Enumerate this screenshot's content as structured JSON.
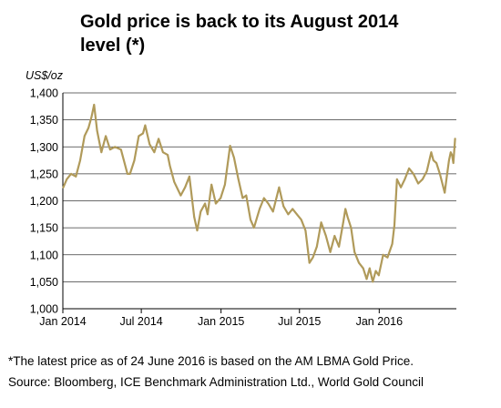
{
  "chart_data": {
    "type": "line",
    "title_lines": [
      "Gold price is back to its August 2014",
      "level (*)"
    ],
    "ylabel": "US$/oz",
    "ylim": [
      1000,
      1400
    ],
    "yticks": [
      1000,
      1050,
      1100,
      1150,
      1200,
      1250,
      1300,
      1350,
      1400
    ],
    "ytick_labels": [
      "1,000",
      "1,050",
      "1,100",
      "1,150",
      "1,200",
      "1,250",
      "1,300",
      "1,350",
      "1,400"
    ],
    "xlim": [
      "2014-01-01",
      "2016-06-27"
    ],
    "xticks": [
      "2014-01-01",
      "2014-07-01",
      "2015-01-01",
      "2015-07-01",
      "2016-01-01"
    ],
    "xtick_labels": [
      "Jan 2014",
      "Jul 2014",
      "Jan 2015",
      "Jul 2015",
      "Jan 2016"
    ],
    "grid": "horizontal",
    "line_color": "#b09a5a",
    "series": [
      {
        "name": "",
        "points": [
          [
            "2014-01-02",
            1225
          ],
          [
            "2014-01-10",
            1240
          ],
          [
            "2014-01-20",
            1250
          ],
          [
            "2014-01-31",
            1245
          ],
          [
            "2014-02-10",
            1275
          ],
          [
            "2014-02-20",
            1320
          ],
          [
            "2014-03-01",
            1335
          ],
          [
            "2014-03-08",
            1355
          ],
          [
            "2014-03-14",
            1378
          ],
          [
            "2014-03-21",
            1330
          ],
          [
            "2014-03-31",
            1290
          ],
          [
            "2014-04-10",
            1320
          ],
          [
            "2014-04-20",
            1295
          ],
          [
            "2014-05-01",
            1300
          ],
          [
            "2014-05-15",
            1295
          ],
          [
            "2014-05-30",
            1250
          ],
          [
            "2014-06-05",
            1250
          ],
          [
            "2014-06-15",
            1275
          ],
          [
            "2014-06-25",
            1320
          ],
          [
            "2014-07-05",
            1325
          ],
          [
            "2014-07-10",
            1340
          ],
          [
            "2014-07-20",
            1305
          ],
          [
            "2014-07-31",
            1290
          ],
          [
            "2014-08-10",
            1315
          ],
          [
            "2014-08-20",
            1290
          ],
          [
            "2014-08-31",
            1285
          ],
          [
            "2014-09-05",
            1265
          ],
          [
            "2014-09-15",
            1235
          ],
          [
            "2014-09-30",
            1210
          ],
          [
            "2014-10-10",
            1225
          ],
          [
            "2014-10-20",
            1245
          ],
          [
            "2014-10-31",
            1170
          ],
          [
            "2014-11-07",
            1145
          ],
          [
            "2014-11-15",
            1180
          ],
          [
            "2014-11-25",
            1195
          ],
          [
            "2014-12-01",
            1175
          ],
          [
            "2014-12-10",
            1230
          ],
          [
            "2014-12-20",
            1195
          ],
          [
            "2014-12-31",
            1205
          ],
          [
            "2015-01-10",
            1230
          ],
          [
            "2015-01-22",
            1302
          ],
          [
            "2015-01-31",
            1280
          ],
          [
            "2015-02-10",
            1240
          ],
          [
            "2015-02-20",
            1205
          ],
          [
            "2015-02-28",
            1210
          ],
          [
            "2015-03-10",
            1165
          ],
          [
            "2015-03-18",
            1150
          ],
          [
            "2015-03-31",
            1185
          ],
          [
            "2015-04-10",
            1205
          ],
          [
            "2015-04-20",
            1195
          ],
          [
            "2015-05-01",
            1180
          ],
          [
            "2015-05-15",
            1225
          ],
          [
            "2015-05-25",
            1190
          ],
          [
            "2015-06-05",
            1175
          ],
          [
            "2015-06-15",
            1185
          ],
          [
            "2015-06-25",
            1175
          ],
          [
            "2015-07-05",
            1165
          ],
          [
            "2015-07-15",
            1145
          ],
          [
            "2015-07-24",
            1085
          ],
          [
            "2015-08-01",
            1095
          ],
          [
            "2015-08-10",
            1115
          ],
          [
            "2015-08-20",
            1160
          ],
          [
            "2015-08-31",
            1135
          ],
          [
            "2015-09-10",
            1105
          ],
          [
            "2015-09-20",
            1135
          ],
          [
            "2015-09-30",
            1115
          ],
          [
            "2015-10-10",
            1160
          ],
          [
            "2015-10-15",
            1185
          ],
          [
            "2015-10-20",
            1170
          ],
          [
            "2015-10-28",
            1150
          ],
          [
            "2015-11-05",
            1105
          ],
          [
            "2015-11-15",
            1085
          ],
          [
            "2015-11-25",
            1075
          ],
          [
            "2015-12-03",
            1055
          ],
          [
            "2015-12-10",
            1075
          ],
          [
            "2015-12-17",
            1050
          ],
          [
            "2015-12-24",
            1070
          ],
          [
            "2015-12-31",
            1062
          ],
          [
            "2016-01-10",
            1100
          ],
          [
            "2016-01-20",
            1095
          ],
          [
            "2016-01-31",
            1120
          ],
          [
            "2016-02-05",
            1155
          ],
          [
            "2016-02-11",
            1240
          ],
          [
            "2016-02-20",
            1225
          ],
          [
            "2016-02-29",
            1240
          ],
          [
            "2016-03-10",
            1260
          ],
          [
            "2016-03-20",
            1250
          ],
          [
            "2016-03-31",
            1232
          ],
          [
            "2016-04-10",
            1240
          ],
          [
            "2016-04-20",
            1255
          ],
          [
            "2016-04-30",
            1290
          ],
          [
            "2016-05-05",
            1275
          ],
          [
            "2016-05-12",
            1270
          ],
          [
            "2016-05-20",
            1250
          ],
          [
            "2016-05-31",
            1215
          ],
          [
            "2016-06-05",
            1245
          ],
          [
            "2016-06-10",
            1275
          ],
          [
            "2016-06-14",
            1290
          ],
          [
            "2016-06-17",
            1285
          ],
          [
            "2016-06-20",
            1270
          ],
          [
            "2016-06-24",
            1315
          ]
        ]
      }
    ]
  },
  "footnotes": {
    "line1": "*The latest price as of 24 June 2016 is based on the AM LBMA Gold Price.",
    "line2": "Source: Bloomberg, ICE Benchmark Administration Ltd., World Gold Council"
  }
}
